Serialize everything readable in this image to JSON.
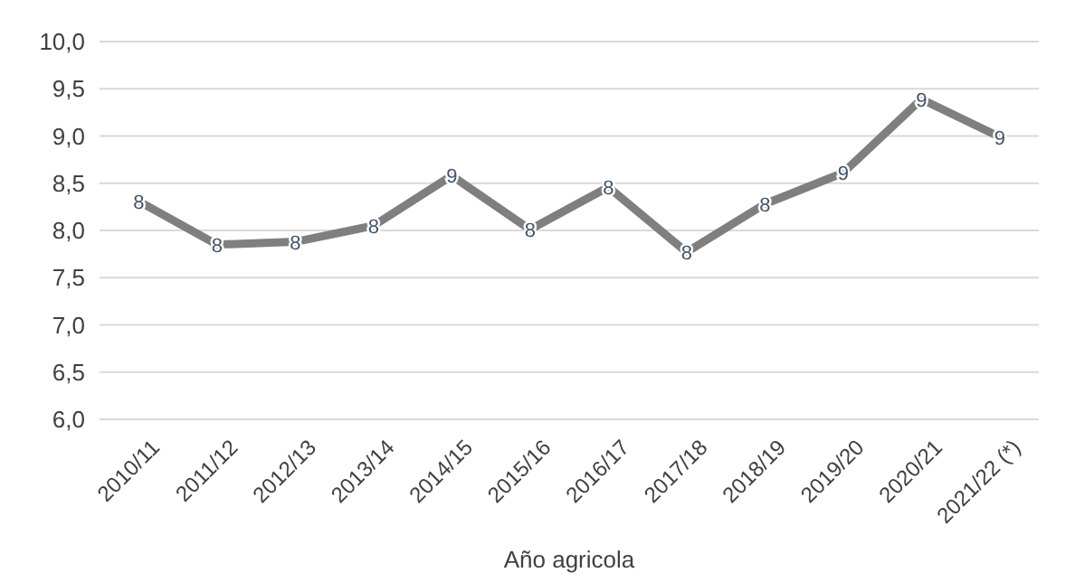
{
  "chart_data": {
    "type": "line",
    "xlabel": "Año agricola",
    "categories": [
      "2010/11",
      "2011/12",
      "2012/13",
      "2013/14",
      "2014/15",
      "2015/16",
      "2016/17",
      "2017/18",
      "2018/19",
      "2019/20",
      "2020/21",
      "2021/22 (*)"
    ],
    "series": [
      {
        "color": "#7f7f7f",
        "values": [
          8.31,
          7.85,
          7.88,
          8.05,
          8.58,
          8.01,
          8.46,
          7.77,
          8.28,
          8.61,
          9.39,
          8.99
        ],
        "value_labels": [
          "8",
          "8",
          "8",
          "8",
          "9",
          "8",
          "8",
          "8",
          "8",
          "9",
          "9",
          "9"
        ]
      }
    ],
    "ylim": [
      6,
      10
    ],
    "yticks": [
      {
        "value": 6,
        "label": "6,0"
      },
      {
        "value": 6.5,
        "label": "6,5"
      },
      {
        "value": 7,
        "label": "7,0"
      },
      {
        "value": 7.5,
        "label": "7,5"
      },
      {
        "value": 8,
        "label": "8,0"
      },
      {
        "value": 8.5,
        "label": "8,5"
      },
      {
        "value": 9,
        "label": "9,0"
      },
      {
        "value": 9.5,
        "label": "9,5"
      },
      {
        "value": 10,
        "label": "10,0"
      }
    ],
    "grid": "y",
    "marker": "circle",
    "line_style": "solid"
  }
}
